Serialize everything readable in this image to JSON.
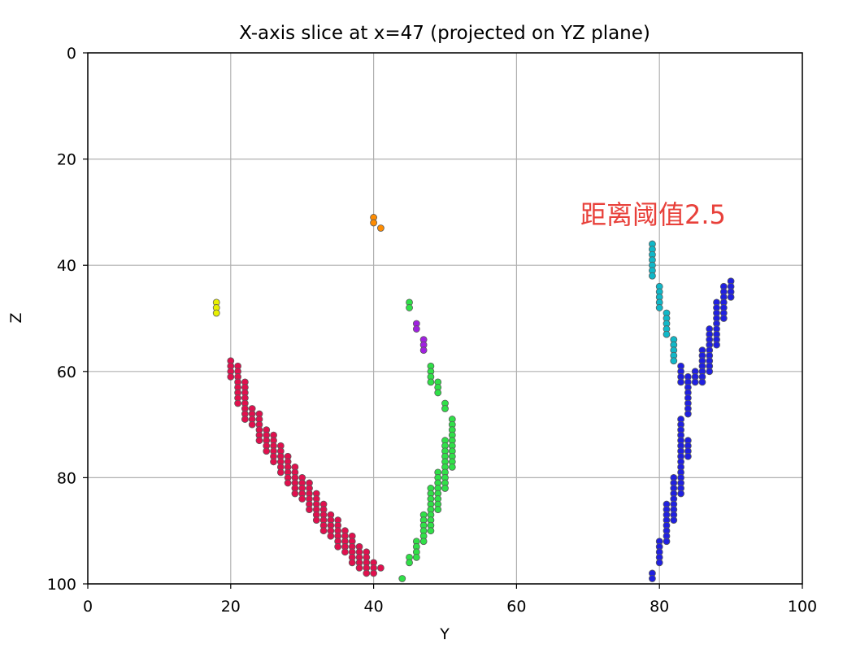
{
  "chart_data": {
    "type": "scatter",
    "title": "X-axis slice at x=47 (projected on YZ plane)",
    "xlabel": "Y",
    "ylabel": "Z",
    "xlim": [
      0,
      100
    ],
    "ylim": [
      100,
      0
    ],
    "y_inverted": true,
    "grid": true,
    "x_ticks": [
      "0",
      "20",
      "40",
      "60",
      "80",
      "100"
    ],
    "y_ticks": [
      "0",
      "20",
      "40",
      "60",
      "80",
      "100"
    ],
    "annotation": "距离阈值2.5",
    "series": [
      {
        "color": "#e8f000",
        "points": [
          [
            18,
            47
          ],
          [
            18,
            48
          ],
          [
            18,
            49
          ]
        ]
      },
      {
        "color": "#ff8c00",
        "points": [
          [
            40,
            31
          ],
          [
            40,
            32
          ],
          [
            41,
            33
          ]
        ]
      },
      {
        "color": "#e0104e",
        "points": [
          [
            20,
            58
          ],
          [
            20,
            59
          ],
          [
            20,
            60
          ],
          [
            20,
            61
          ],
          [
            21,
            59
          ],
          [
            21,
            60
          ],
          [
            21,
            61
          ],
          [
            21,
            62
          ],
          [
            21,
            63
          ],
          [
            21,
            64
          ],
          [
            21,
            65
          ],
          [
            21,
            66
          ],
          [
            22,
            62
          ],
          [
            22,
            63
          ],
          [
            22,
            64
          ],
          [
            22,
            65
          ],
          [
            22,
            66
          ],
          [
            22,
            67
          ],
          [
            22,
            68
          ],
          [
            22,
            69
          ],
          [
            23,
            67
          ],
          [
            23,
            68
          ],
          [
            23,
            69
          ],
          [
            23,
            70
          ],
          [
            24,
            68
          ],
          [
            24,
            69
          ],
          [
            24,
            70
          ],
          [
            24,
            71
          ],
          [
            24,
            72
          ],
          [
            24,
            73
          ],
          [
            25,
            71
          ],
          [
            25,
            72
          ],
          [
            25,
            73
          ],
          [
            25,
            74
          ],
          [
            25,
            75
          ],
          [
            26,
            72
          ],
          [
            26,
            73
          ],
          [
            26,
            74
          ],
          [
            26,
            75
          ],
          [
            26,
            76
          ],
          [
            26,
            77
          ],
          [
            27,
            74
          ],
          [
            27,
            75
          ],
          [
            27,
            76
          ],
          [
            27,
            77
          ],
          [
            27,
            78
          ],
          [
            27,
            79
          ],
          [
            28,
            76
          ],
          [
            28,
            77
          ],
          [
            28,
            78
          ],
          [
            28,
            79
          ],
          [
            28,
            80
          ],
          [
            28,
            81
          ],
          [
            29,
            78
          ],
          [
            29,
            79
          ],
          [
            29,
            80
          ],
          [
            29,
            81
          ],
          [
            29,
            82
          ],
          [
            29,
            83
          ],
          [
            30,
            80
          ],
          [
            30,
            81
          ],
          [
            30,
            82
          ],
          [
            30,
            83
          ],
          [
            30,
            84
          ],
          [
            31,
            81
          ],
          [
            31,
            82
          ],
          [
            31,
            83
          ],
          [
            31,
            84
          ],
          [
            31,
            85
          ],
          [
            31,
            86
          ],
          [
            32,
            83
          ],
          [
            32,
            84
          ],
          [
            32,
            85
          ],
          [
            32,
            86
          ],
          [
            32,
            87
          ],
          [
            32,
            88
          ],
          [
            33,
            85
          ],
          [
            33,
            86
          ],
          [
            33,
            87
          ],
          [
            33,
            88
          ],
          [
            33,
            89
          ],
          [
            33,
            90
          ],
          [
            34,
            87
          ],
          [
            34,
            88
          ],
          [
            34,
            89
          ],
          [
            34,
            90
          ],
          [
            34,
            91
          ],
          [
            35,
            88
          ],
          [
            35,
            89
          ],
          [
            35,
            90
          ],
          [
            35,
            91
          ],
          [
            35,
            92
          ],
          [
            35,
            93
          ],
          [
            36,
            90
          ],
          [
            36,
            91
          ],
          [
            36,
            92
          ],
          [
            36,
            93
          ],
          [
            36,
            94
          ],
          [
            37,
            91
          ],
          [
            37,
            92
          ],
          [
            37,
            93
          ],
          [
            37,
            94
          ],
          [
            37,
            95
          ],
          [
            37,
            96
          ],
          [
            38,
            93
          ],
          [
            38,
            94
          ],
          [
            38,
            95
          ],
          [
            38,
            96
          ],
          [
            38,
            97
          ],
          [
            39,
            94
          ],
          [
            39,
            95
          ],
          [
            39,
            96
          ],
          [
            39,
            97
          ],
          [
            39,
            98
          ],
          [
            40,
            96
          ],
          [
            40,
            97
          ],
          [
            40,
            98
          ],
          [
            41,
            97
          ]
        ]
      },
      {
        "color": "#a020e0",
        "points": [
          [
            46,
            51
          ],
          [
            46,
            52
          ],
          [
            47,
            54
          ],
          [
            47,
            55
          ],
          [
            47,
            56
          ]
        ]
      },
      {
        "color": "#30e048",
        "points": [
          [
            45,
            47
          ],
          [
            45,
            48
          ],
          [
            48,
            59
          ],
          [
            48,
            60
          ],
          [
            48,
            61
          ],
          [
            48,
            62
          ],
          [
            49,
            62
          ],
          [
            49,
            63
          ],
          [
            49,
            64
          ],
          [
            50,
            66
          ],
          [
            50,
            67
          ],
          [
            51,
            69
          ],
          [
            51,
            70
          ],
          [
            51,
            71
          ],
          [
            51,
            72
          ],
          [
            51,
            73
          ],
          [
            51,
            74
          ],
          [
            51,
            75
          ],
          [
            51,
            76
          ],
          [
            51,
            77
          ],
          [
            51,
            78
          ],
          [
            50,
            73
          ],
          [
            50,
            74
          ],
          [
            50,
            75
          ],
          [
            50,
            76
          ],
          [
            50,
            77
          ],
          [
            50,
            78
          ],
          [
            50,
            79
          ],
          [
            50,
            80
          ],
          [
            50,
            81
          ],
          [
            50,
            82
          ],
          [
            49,
            79
          ],
          [
            49,
            80
          ],
          [
            49,
            81
          ],
          [
            49,
            82
          ],
          [
            49,
            83
          ],
          [
            49,
            84
          ],
          [
            49,
            85
          ],
          [
            49,
            86
          ],
          [
            48,
            82
          ],
          [
            48,
            83
          ],
          [
            48,
            84
          ],
          [
            48,
            85
          ],
          [
            48,
            86
          ],
          [
            48,
            87
          ],
          [
            48,
            88
          ],
          [
            48,
            89
          ],
          [
            48,
            90
          ],
          [
            47,
            87
          ],
          [
            47,
            88
          ],
          [
            47,
            89
          ],
          [
            47,
            90
          ],
          [
            47,
            91
          ],
          [
            47,
            92
          ],
          [
            46,
            92
          ],
          [
            46,
            93
          ],
          [
            46,
            94
          ],
          [
            46,
            95
          ],
          [
            45,
            95
          ],
          [
            45,
            96
          ],
          [
            44,
            99
          ]
        ]
      },
      {
        "color": "#10b8c8",
        "points": [
          [
            79,
            36
          ],
          [
            79,
            37
          ],
          [
            79,
            38
          ],
          [
            79,
            39
          ],
          [
            79,
            40
          ],
          [
            79,
            41
          ],
          [
            79,
            42
          ],
          [
            80,
            44
          ],
          [
            80,
            45
          ],
          [
            80,
            46
          ],
          [
            80,
            47
          ],
          [
            80,
            48
          ],
          [
            81,
            49
          ],
          [
            81,
            50
          ],
          [
            81,
            51
          ],
          [
            81,
            52
          ],
          [
            81,
            53
          ],
          [
            82,
            54
          ],
          [
            82,
            55
          ],
          [
            82,
            56
          ],
          [
            82,
            57
          ],
          [
            82,
            58
          ]
        ]
      },
      {
        "color": "#2020e0",
        "points": [
          [
            90,
            43
          ],
          [
            90,
            44
          ],
          [
            90,
            45
          ],
          [
            90,
            46
          ],
          [
            89,
            44
          ],
          [
            89,
            45
          ],
          [
            89,
            46
          ],
          [
            89,
            47
          ],
          [
            89,
            48
          ],
          [
            89,
            49
          ],
          [
            89,
            50
          ],
          [
            88,
            47
          ],
          [
            88,
            48
          ],
          [
            88,
            49
          ],
          [
            88,
            50
          ],
          [
            88,
            51
          ],
          [
            88,
            52
          ],
          [
            88,
            53
          ],
          [
            88,
            54
          ],
          [
            88,
            55
          ],
          [
            87,
            52
          ],
          [
            87,
            53
          ],
          [
            87,
            54
          ],
          [
            87,
            55
          ],
          [
            87,
            56
          ],
          [
            87,
            57
          ],
          [
            87,
            58
          ],
          [
            87,
            59
          ],
          [
            87,
            60
          ],
          [
            86,
            56
          ],
          [
            86,
            57
          ],
          [
            86,
            58
          ],
          [
            86,
            59
          ],
          [
            86,
            60
          ],
          [
            86,
            61
          ],
          [
            86,
            62
          ],
          [
            85,
            60
          ],
          [
            85,
            61
          ],
          [
            85,
            62
          ],
          [
            84,
            61
          ],
          [
            84,
            62
          ],
          [
            84,
            63
          ],
          [
            84,
            64
          ],
          [
            84,
            65
          ],
          [
            84,
            66
          ],
          [
            84,
            67
          ],
          [
            84,
            68
          ],
          [
            84,
            73
          ],
          [
            84,
            74
          ],
          [
            84,
            75
          ],
          [
            84,
            76
          ],
          [
            83,
            59
          ],
          [
            83,
            60
          ],
          [
            83,
            61
          ],
          [
            83,
            62
          ],
          [
            83,
            69
          ],
          [
            83,
            70
          ],
          [
            83,
            71
          ],
          [
            83,
            72
          ],
          [
            83,
            73
          ],
          [
            83,
            74
          ],
          [
            83,
            75
          ],
          [
            83,
            76
          ],
          [
            83,
            77
          ],
          [
            83,
            78
          ],
          [
            83,
            79
          ],
          [
            83,
            80
          ],
          [
            83,
            81
          ],
          [
            83,
            82
          ],
          [
            83,
            83
          ],
          [
            82,
            80
          ],
          [
            82,
            81
          ],
          [
            82,
            82
          ],
          [
            82,
            83
          ],
          [
            82,
            84
          ],
          [
            82,
            85
          ],
          [
            82,
            86
          ],
          [
            82,
            87
          ],
          [
            82,
            88
          ],
          [
            81,
            85
          ],
          [
            81,
            86
          ],
          [
            81,
            87
          ],
          [
            81,
            88
          ],
          [
            81,
            89
          ],
          [
            81,
            90
          ],
          [
            81,
            91
          ],
          [
            81,
            92
          ],
          [
            80,
            92
          ],
          [
            80,
            93
          ],
          [
            80,
            94
          ],
          [
            80,
            95
          ],
          [
            80,
            96
          ],
          [
            79,
            98
          ],
          [
            79,
            99
          ]
        ]
      }
    ]
  }
}
